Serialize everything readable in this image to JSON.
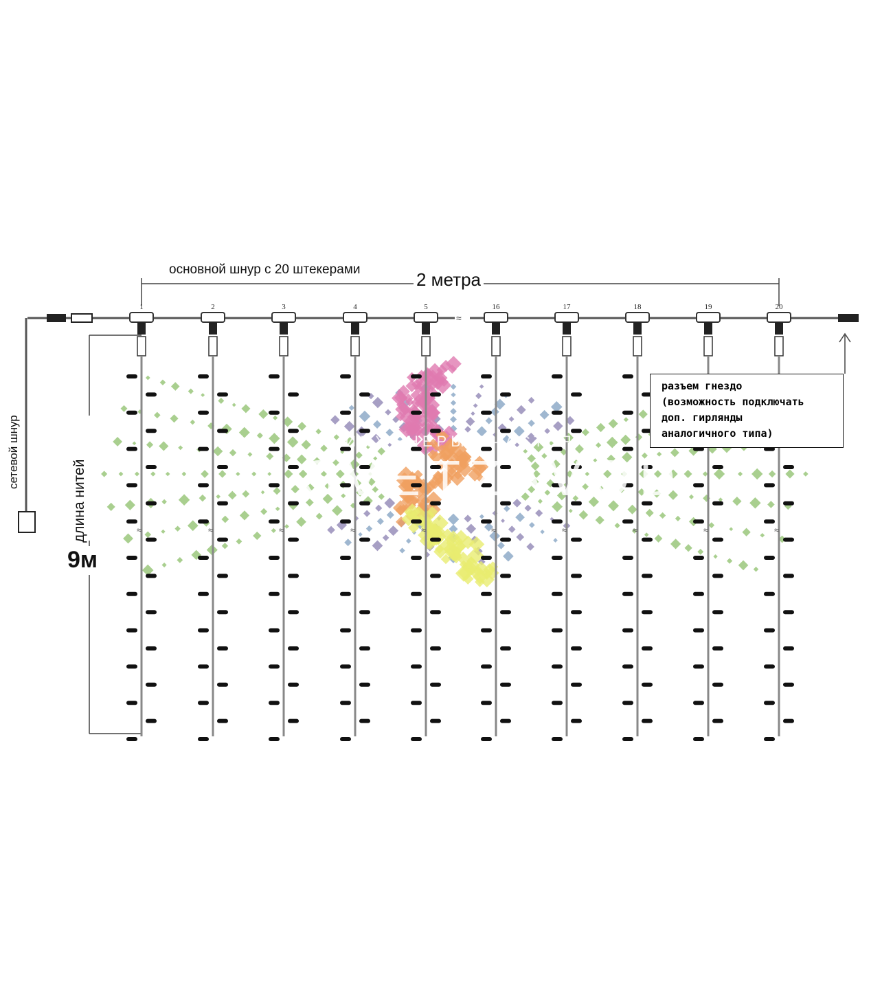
{
  "labels": {
    "main_cord": "основной шнур с 20 штекерами",
    "width": "2 метра",
    "power_cord": "сетевой шнур",
    "strand_length": "длина нитей",
    "strand_length_value": "9м"
  },
  "socket_note": {
    "lines": [
      "разъем гнездо",
      "(возможность подключать",
      "доп. гирлянды",
      "аналогичного типа)"
    ]
  },
  "strand_numbers": [
    "1",
    "2",
    "3",
    "4",
    "5",
    "16",
    "17",
    "18",
    "19",
    "20"
  ],
  "watermark": {
    "line1": "ИНЖЕНЕРЫ СЧАСТЬЯ",
    "line2": "SVETZAVOD"
  },
  "colors": {
    "line": "#555555",
    "bulb": "#111111",
    "wm_pink": "#e07ab0",
    "wm_orange": "#f0a060",
    "wm_yellow": "#e8ec70",
    "rays_blue": "#7f9fc0",
    "rays_purple": "#8a7fb0",
    "rays_green": "#8cbf6a"
  }
}
